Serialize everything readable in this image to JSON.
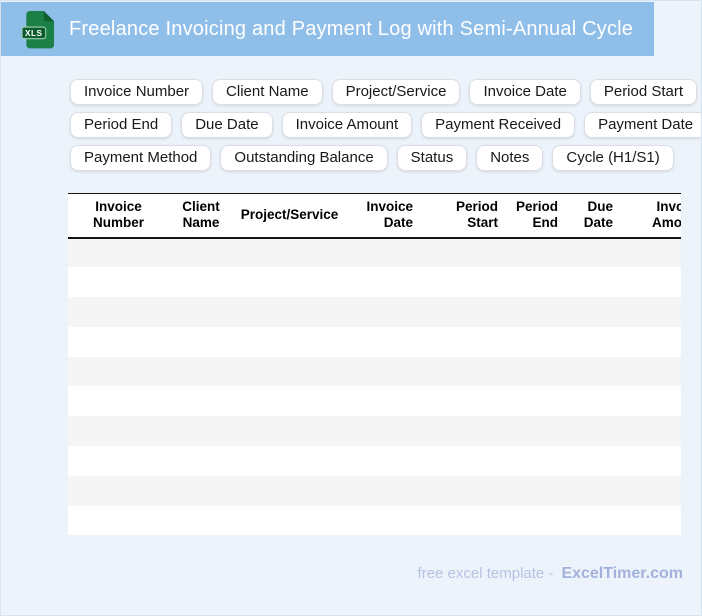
{
  "header": {
    "title": "Freelance Invoicing and Payment Log with Semi-Annual Cycle",
    "badge": "XLS"
  },
  "colors": {
    "topbar_blue": "#8fbee9",
    "page_background": "#edf3fb",
    "icon_green": "#1a8045",
    "icon_badge_green": "#0c5c2d",
    "row_stripe": "#f5f5f6",
    "footer_text": "#b7c2e2",
    "footer_brand": "#a3b2dc"
  },
  "chips": {
    "rows": [
      [
        "Invoice Number",
        "Client Name",
        "Project/Service",
        "Invoice Date",
        "Period Start"
      ],
      [
        "Period End",
        "Due Date",
        "Invoice Amount",
        "Payment Received",
        "Payment Date"
      ],
      [
        "Payment Method",
        "Outstanding Balance",
        "Status",
        "Notes",
        "Cycle (H1/S1)"
      ]
    ]
  },
  "table": {
    "columns": [
      "Invoice Number",
      "Client Name",
      "Project/Service",
      "Invoice Date",
      "Period Start",
      "Period End",
      "Due Date",
      "Invoice Amount"
    ],
    "empty_row_count": 10
  },
  "footer": {
    "text": "free excel template -",
    "brand": "ExcelTimer.com"
  }
}
